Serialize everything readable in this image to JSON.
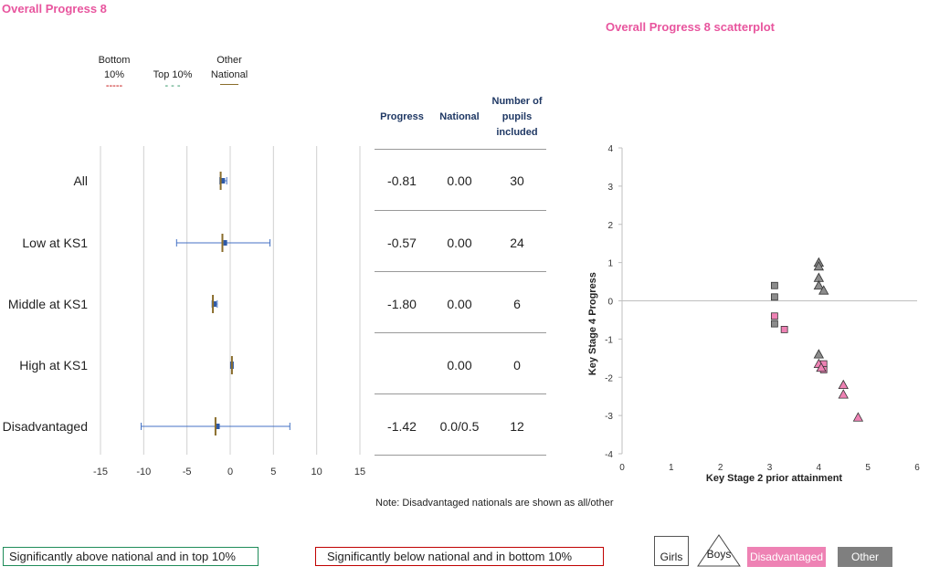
{
  "title": "Overall Progress 8",
  "scatter_title": "Overall Progress 8 scatterplot",
  "legend": [
    {
      "label": "Bottom 10%",
      "line": "-----",
      "color": "#c00000"
    },
    {
      "label": "Top 10%",
      "line": "- - -",
      "color": "#1f8c5a"
    },
    {
      "label": "Other National",
      "line": "",
      "color": "#8a6d2b"
    }
  ],
  "table": {
    "headers": [
      "Progress",
      "National",
      "Number of pupils included"
    ],
    "rows": [
      {
        "label": "All",
        "progress": "-0.81",
        "national": "0.00",
        "number": "30"
      },
      {
        "label": "Low at KS1",
        "progress": "-0.57",
        "national": "0.00",
        "number": "24"
      },
      {
        "label": "Middle at KS1",
        "progress": "-1.80",
        "national": "0.00",
        "number": "6"
      },
      {
        "label": "High at KS1",
        "progress": "",
        "national": "0.00",
        "number": "0"
      },
      {
        "label": "Disadvantaged",
        "progress": "-1.42",
        "national": "0.0/0.5",
        "number": "12"
      }
    ]
  },
  "note": "Note: Disadvantaged nationals are shown as all/other",
  "key_boxes": {
    "above": "Significantly above national and in top 10%",
    "below": "Significantly below national and in bottom 10%"
  },
  "symbol_key": {
    "girls": "Girls",
    "boys": "Boys",
    "disadvantaged": "Disadvantaged",
    "other": "Other"
  },
  "colors": {
    "pink": "#e8559e",
    "disadv": "#ee82b4",
    "other": "#8c8c8c",
    "bar": "#4472c4",
    "national": "#8a6d2b",
    "above_border": "#1f8c5a",
    "below_border": "#c00000"
  },
  "chart_data": [
    {
      "type": "errorbar",
      "categories": [
        "All",
        "Low at KS1",
        "Middle at KS1",
        "High at KS1",
        "Disadvantaged"
      ],
      "values": [
        -0.81,
        -0.57,
        -1.8,
        null,
        -1.42
      ],
      "ci_low": [
        -1.2,
        -6.2,
        -2.1,
        null,
        -10.3
      ],
      "ci_high": [
        -0.4,
        4.6,
        -1.5,
        null,
        6.9
      ],
      "national": [
        -1.1,
        -0.9,
        -2.0,
        0.2,
        -1.7
      ],
      "xlim": [
        -15,
        15
      ],
      "xticks": [
        -15,
        -10,
        -5,
        0,
        5,
        10,
        15
      ],
      "grid": true
    },
    {
      "type": "scatter",
      "xlabel": "Key Stage 2 prior attainment",
      "ylabel": "Key Stage 4 Progress",
      "xlim": [
        0,
        6
      ],
      "ylim": [
        -4,
        4
      ],
      "xticks": [
        0,
        1,
        2,
        3,
        4,
        5,
        6
      ],
      "yticks": [
        -4,
        -3,
        -2,
        -1,
        0,
        1,
        2,
        3,
        4
      ],
      "series": [
        {
          "name": "Girls",
          "marker": "square",
          "group": "Other",
          "points": [
            [
              3.1,
              0.4
            ],
            [
              3.1,
              0.1
            ],
            [
              3.1,
              -0.6
            ]
          ]
        },
        {
          "name": "Girls",
          "marker": "square",
          "group": "Disadvantaged",
          "points": [
            [
              3.1,
              -0.4
            ],
            [
              3.3,
              -0.75
            ],
            [
              4.1,
              -1.65
            ],
            [
              4.1,
              -1.8
            ]
          ]
        },
        {
          "name": "Boys",
          "marker": "triangle",
          "group": "Other",
          "points": [
            [
              4.0,
              1.0
            ],
            [
              4.0,
              0.9
            ],
            [
              4.0,
              0.6
            ],
            [
              4.0,
              0.4
            ],
            [
              4.1,
              0.27
            ],
            [
              4.0,
              -1.4
            ]
          ]
        },
        {
          "name": "Boys",
          "marker": "triangle",
          "group": "Disadvantaged",
          "points": [
            [
              4.0,
              -1.65
            ],
            [
              4.05,
              -1.75
            ],
            [
              4.5,
              -2.2
            ],
            [
              4.5,
              -2.45
            ],
            [
              4.8,
              -3.05
            ]
          ]
        }
      ]
    }
  ]
}
